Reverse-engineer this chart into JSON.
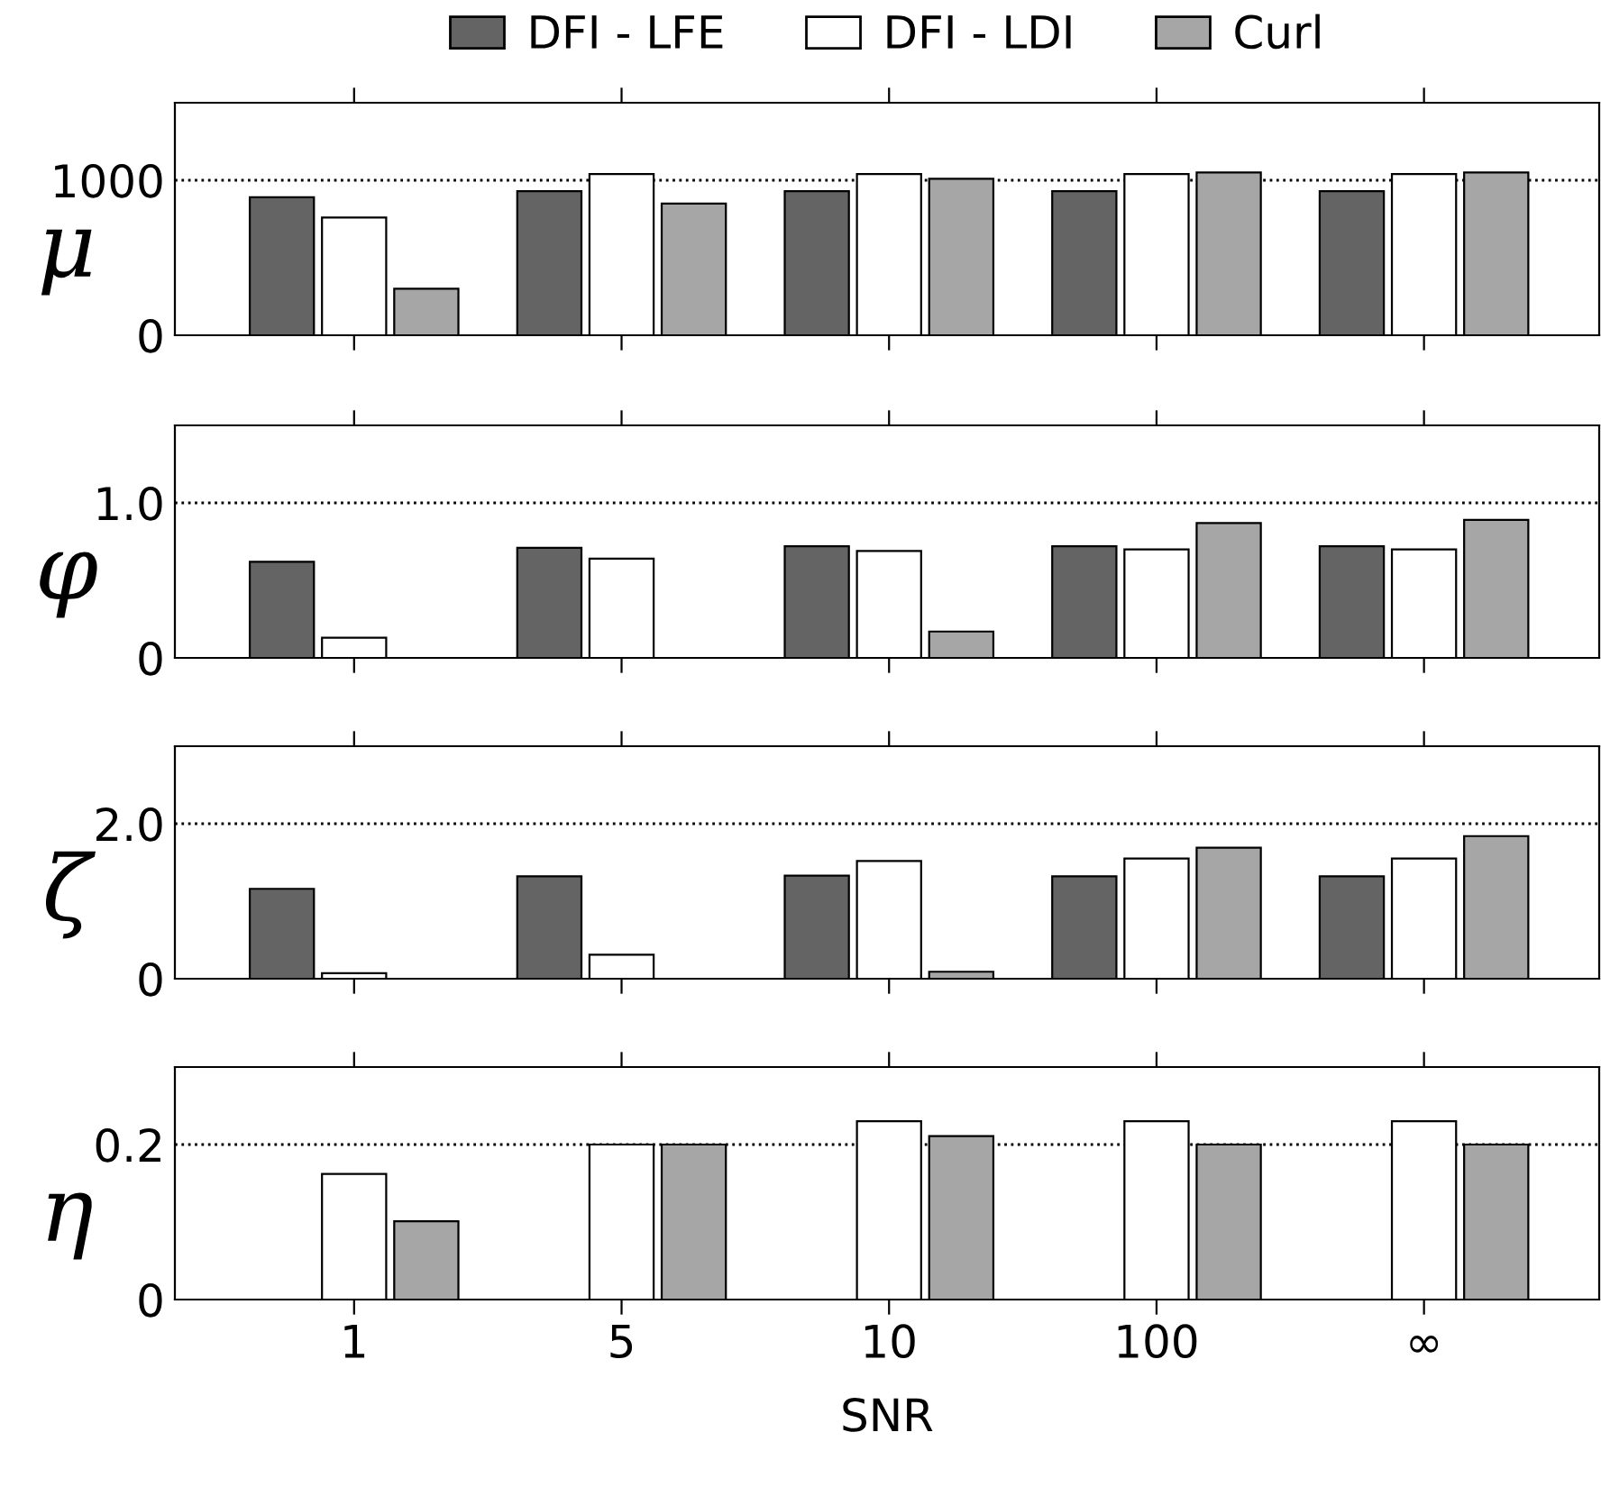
{
  "chart_data": [
    {
      "type": "bar",
      "ylabel": "μ",
      "categories": [
        null,
        null,
        null,
        null,
        null
      ],
      "ylim": [
        0,
        1500
      ],
      "yticks": [
        0,
        1000
      ],
      "legend": "top",
      "grid": false,
      "ref_lines": [
        {
          "axis": "y",
          "value": 1000,
          "color": "#000000",
          "line_style": "dotted"
        }
      ],
      "series": [
        {
          "name": "DFI - LFE",
          "color": "#646464",
          "values": [
            890,
            930,
            930,
            930,
            930
          ]
        },
        {
          "name": "DFI - LDI",
          "color": "#ffffff",
          "values": [
            760,
            1040,
            1040,
            1040,
            1040
          ]
        },
        {
          "name": "Curl",
          "color": "#a6a6a6",
          "values": [
            300,
            850,
            1010,
            1050,
            1050
          ]
        }
      ]
    },
    {
      "type": "bar",
      "ylabel": "φ",
      "categories": [
        null,
        null,
        null,
        null,
        null
      ],
      "ylim": [
        0,
        1.5
      ],
      "yticks": [
        0,
        {
          "value": 1.0,
          "label": "1.0"
        }
      ],
      "grid": false,
      "ref_lines": [
        {
          "axis": "y",
          "value": 1.0,
          "color": "#000000",
          "line_style": "dotted"
        }
      ],
      "series": [
        {
          "color": "#646464",
          "values": [
            0.62,
            0.71,
            0.72,
            0.72,
            0.72
          ]
        },
        {
          "color": "#ffffff",
          "values": [
            0.13,
            0.64,
            0.69,
            0.7,
            0.7
          ]
        },
        {
          "color": "#a6a6a6",
          "values": [
            null,
            null,
            0.17,
            0.87,
            0.89
          ]
        }
      ]
    },
    {
      "type": "bar",
      "ylabel": "ζ",
      "categories": [
        null,
        null,
        null,
        null,
        null
      ],
      "ylim": [
        0,
        3.0
      ],
      "yticks": [
        0,
        {
          "value": 2.0,
          "label": "2.0"
        }
      ],
      "grid": false,
      "ref_lines": [
        {
          "axis": "y",
          "value": 2.0,
          "color": "#000000",
          "line_style": "dotted"
        }
      ],
      "series": [
        {
          "color": "#646464",
          "values": [
            1.16,
            1.32,
            1.33,
            1.32,
            1.32
          ]
        },
        {
          "color": "#ffffff",
          "values": [
            0.07,
            0.31,
            1.52,
            1.55,
            1.55
          ]
        },
        {
          "color": "#a6a6a6",
          "values": [
            null,
            null,
            0.09,
            1.69,
            1.84
          ]
        }
      ]
    },
    {
      "type": "bar",
      "ylabel": "η",
      "xlabel": "SNR",
      "categories": [
        "1",
        "5",
        "10",
        "100",
        "∞"
      ],
      "ylim": [
        0,
        0.3
      ],
      "yticks": [
        0,
        0.2
      ],
      "grid": false,
      "ref_lines": [
        {
          "axis": "y",
          "value": 0.2,
          "color": "#000000",
          "line_style": "dotted"
        }
      ],
      "series": [
        {
          "color": "#646464",
          "values": [
            null,
            null,
            null,
            null,
            null
          ]
        },
        {
          "color": "#ffffff",
          "values": [
            0.162,
            0.2,
            0.23,
            0.23,
            0.23
          ]
        },
        {
          "color": "#a6a6a6",
          "values": [
            0.101,
            0.2,
            0.211,
            0.2,
            0.2
          ]
        }
      ]
    }
  ]
}
